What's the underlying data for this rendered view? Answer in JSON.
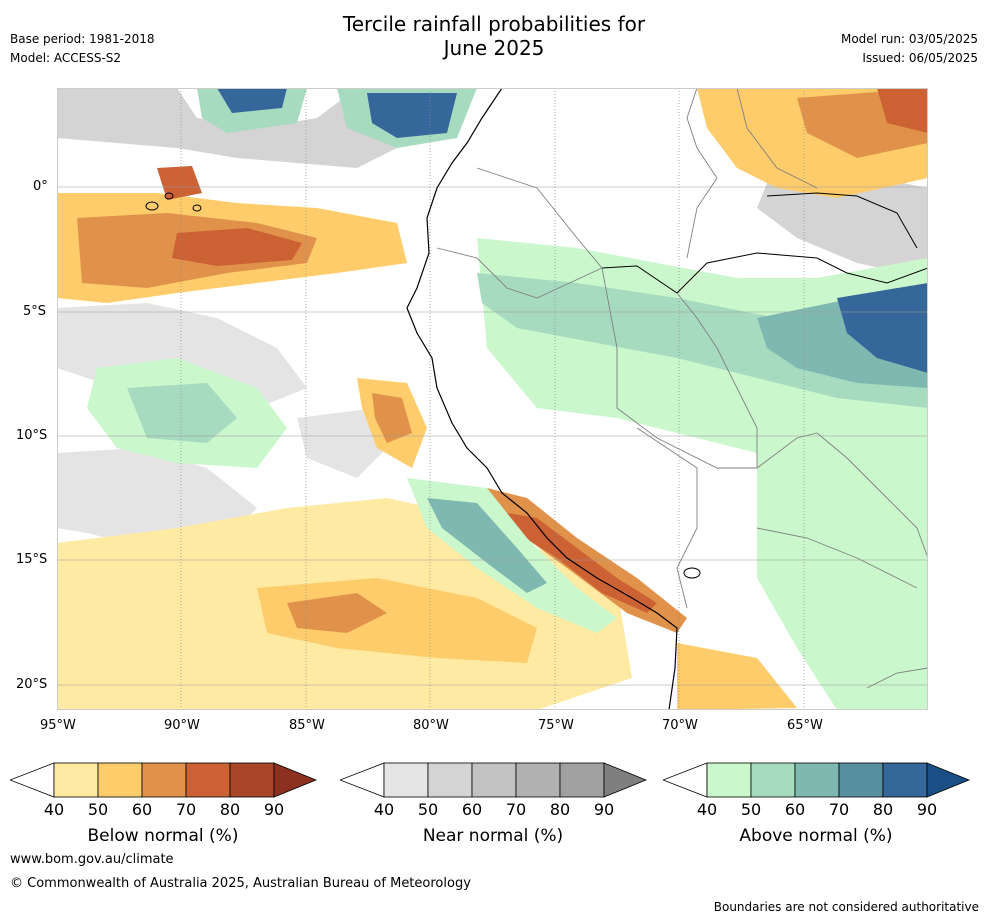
{
  "header": {
    "title_line1": "Tercile rainfall probabilities for",
    "title_line2": "June 2025",
    "base_period": "Base period: 1981-2018",
    "model": "Model: ACCESS-S2",
    "model_run": "Model run: 03/05/2025",
    "issued": "Issued: 06/05/2025"
  },
  "map": {
    "lon_ticks": [
      "95°W",
      "90°W",
      "85°W",
      "80°W",
      "75°W",
      "70°W",
      "65°W"
    ],
    "lat_ticks": [
      "0°",
      "5°S",
      "10°S",
      "15°S",
      "20°S"
    ]
  },
  "colorbars": [
    {
      "label": "Below normal (%)",
      "ticks": [
        "40",
        "50",
        "60",
        "70",
        "80",
        "90"
      ],
      "colors": [
        "#ffffff",
        "#ffeaa4",
        "#fecc6a",
        "#e0924a",
        "#cc6134",
        "#ab4529",
        "#8d3020"
      ]
    },
    {
      "label": "Near normal (%)",
      "ticks": [
        "40",
        "50",
        "60",
        "70",
        "80",
        "90"
      ],
      "colors": [
        "#ffffff",
        "#e4e4e4",
        "#d4d4d4",
        "#c2c2c2",
        "#b1b1b1",
        "#a0a0a0",
        "#7f7f7f"
      ]
    },
    {
      "label": "Above normal (%)",
      "ticks": [
        "40",
        "50",
        "60",
        "70",
        "80",
        "90"
      ],
      "colors": [
        "#ffffff",
        "#caf7cc",
        "#a6dbc0",
        "#7fb8b1",
        "#588f9f",
        "#36679a",
        "#1a4f86"
      ]
    }
  ],
  "footer": {
    "url": "www.bom.gov.au/climate",
    "copyright": "© Commonwealth of Australia 2025, Australian Bureau of Meteorology",
    "disclaimer": "Boundaries are not considered authoritative"
  }
}
